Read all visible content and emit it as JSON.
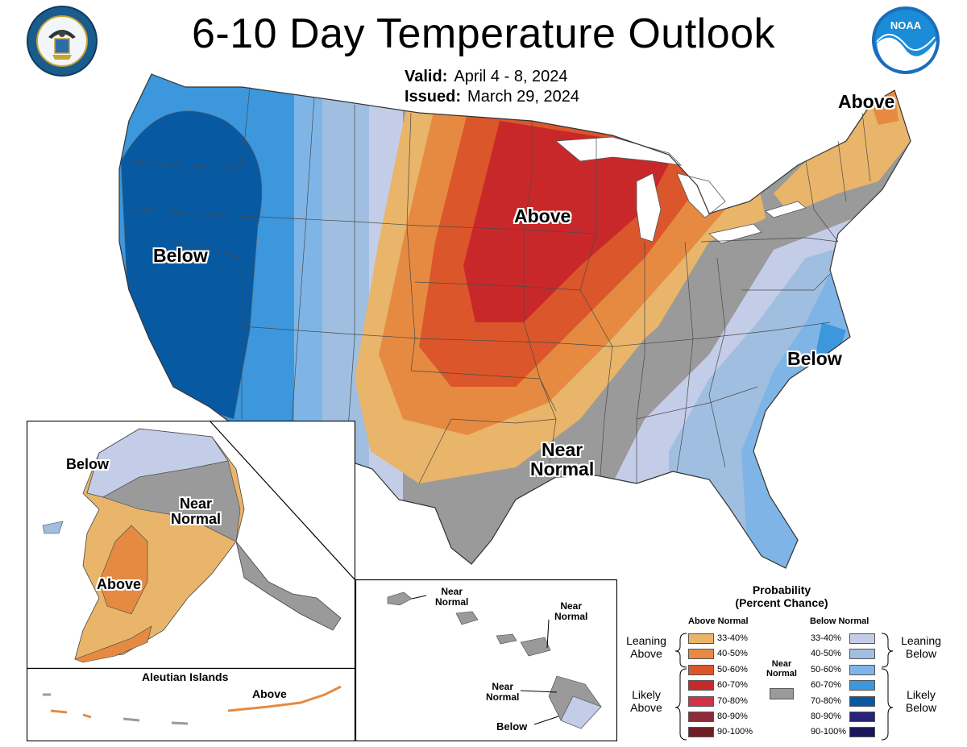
{
  "title": "6-10 Day Temperature Outlook",
  "valid_label": "Valid:",
  "valid_value": "April 4 - 8, 2024",
  "issued_label": "Issued:",
  "issued_value": "March 29, 2024",
  "logos": {
    "left": "doc-seal",
    "right": "noaa-logo",
    "noaa_text": "NOAA"
  },
  "map_labels": {
    "conus_above_ne": "Above",
    "conus_above_central": "Above",
    "conus_below_west": "Below",
    "conus_below_se": "Below",
    "conus_near_normal_1": "Near",
    "conus_near_normal_2": "Normal",
    "ak_below": "Below",
    "ak_near_1": "Near",
    "ak_near_2": "Normal",
    "ak_above": "Above",
    "aleutian_title": "Aleutian Islands",
    "aleutian_above": "Above",
    "hi_near_a_1": "Near",
    "hi_near_a_2": "Normal",
    "hi_near_b_1": "Near",
    "hi_near_b_2": "Normal",
    "hi_near_c_1": "Near",
    "hi_near_c_2": "Normal",
    "hi_below": "Below"
  },
  "legend": {
    "title_1": "Probability",
    "title_2": "(Percent Chance)",
    "above_head": "Above Normal",
    "below_head": "Below Normal",
    "near_1": "Near",
    "near_2": "Normal",
    "leaning_above_1": "Leaning",
    "leaning_above_2": "Above",
    "likely_above_1": "Likely",
    "likely_above_2": "Above",
    "leaning_below_1": "Leaning",
    "leaning_below_2": "Below",
    "likely_below_1": "Likely",
    "likely_below_2": "Below",
    "above": [
      {
        "range": "33-40%",
        "color": "#E8B56A"
      },
      {
        "range": "40-50%",
        "color": "#E68A42"
      },
      {
        "range": "50-60%",
        "color": "#DB562A"
      },
      {
        "range": "60-70%",
        "color": "#C8282A"
      },
      {
        "range": "70-80%",
        "color": "#D23148"
      },
      {
        "range": "80-90%",
        "color": "#8E2A3A"
      },
      {
        "range": "90-100%",
        "color": "#6E1E24"
      }
    ],
    "below": [
      {
        "range": "33-40%",
        "color": "#C4CDE8"
      },
      {
        "range": "40-50%",
        "color": "#A0BEE0"
      },
      {
        "range": "50-60%",
        "color": "#7EB5E6"
      },
      {
        "range": "60-70%",
        "color": "#3C97DC"
      },
      {
        "range": "70-80%",
        "color": "#075AA2"
      },
      {
        "range": "80-90%",
        "color": "#2A2178"
      },
      {
        "range": "90-100%",
        "color": "#1C155C"
      }
    ],
    "near_color": "#9A9A9A"
  }
}
